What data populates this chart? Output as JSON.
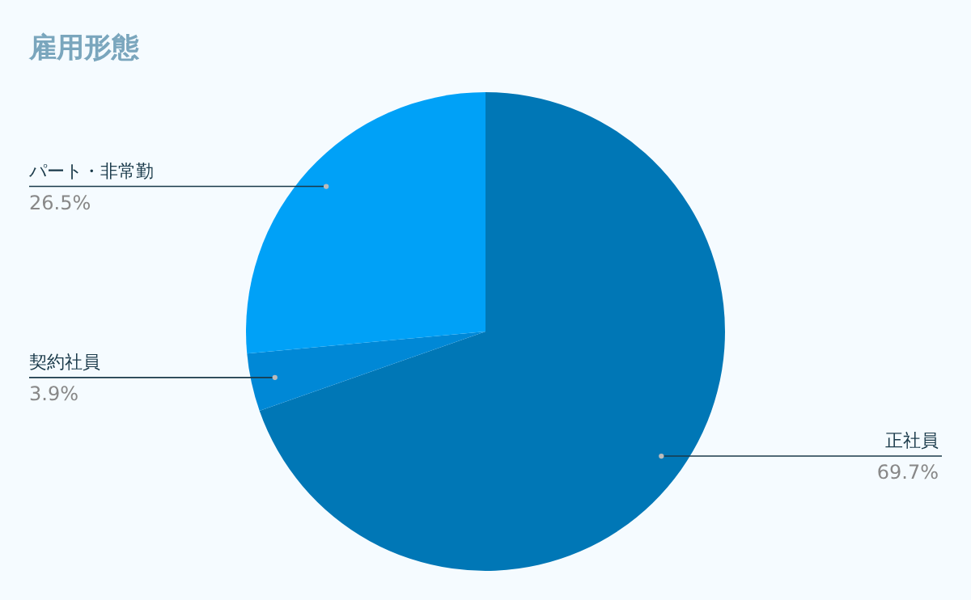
{
  "chart_data": {
    "type": "pie",
    "title": "雇用形態",
    "categories": [
      "正社員",
      "契約社員",
      "パート・非常勤"
    ],
    "values": [
      69.7,
      3.9,
      26.5
    ],
    "colors": [
      "#0077b6",
      "#0088d6",
      "#00a1f7"
    ],
    "value_labels": [
      "69.7%",
      "3.9%",
      "26.5%"
    ]
  }
}
